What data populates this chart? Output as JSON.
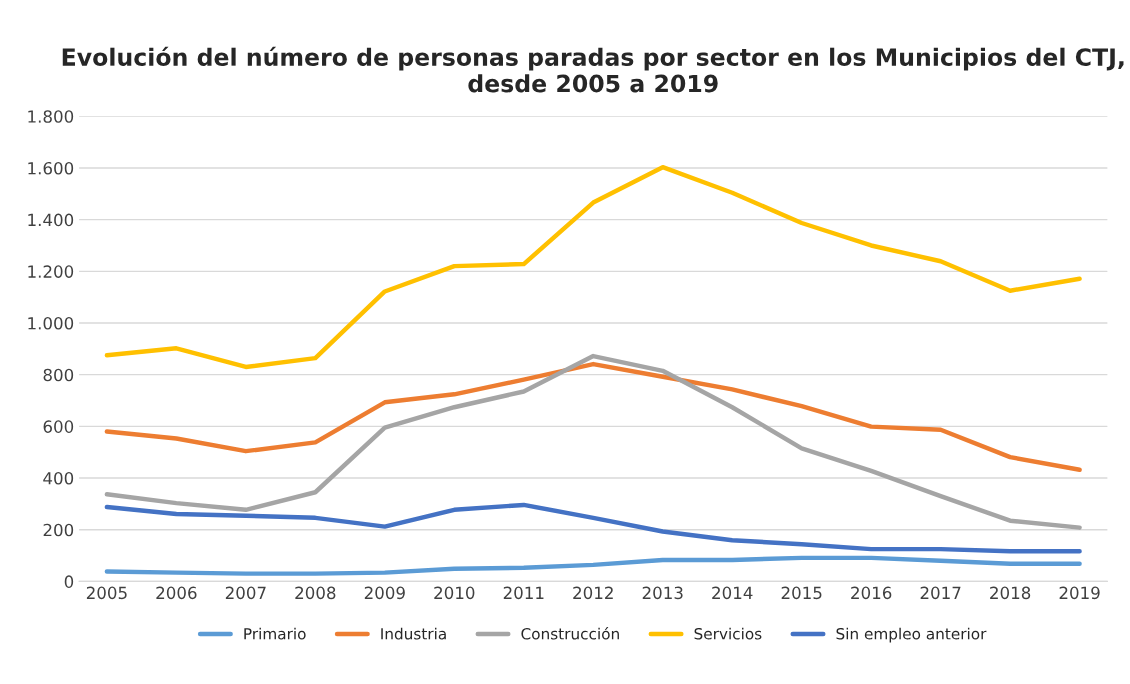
{
  "chart_data": {
    "type": "line",
    "title": "Evolución del número de personas paradas por sector en los Municipios del CTJ, desde 2005 a 2019",
    "categories": [
      "2005",
      "2006",
      "2007",
      "2008",
      "2009",
      "2010",
      "2011",
      "2012",
      "2013",
      "2014",
      "2015",
      "2016",
      "2017",
      "2018",
      "2019"
    ],
    "series": [
      {
        "name": "Primario",
        "color": "#5b9bd5",
        "values": [
          38,
          34,
          30,
          30,
          34,
          49,
          53,
          64,
          83,
          83,
          91,
          91,
          80,
          68,
          68
        ]
      },
      {
        "name": "Industria",
        "color": "#ed7d31",
        "values": [
          580,
          553,
          504,
          538,
          693,
          724,
          781,
          841,
          792,
          743,
          678,
          599,
          587,
          481,
          432
        ]
      },
      {
        "name": "Construcción",
        "color": "#a5a5a5",
        "values": [
          337,
          303,
          277,
          345,
          595,
          674,
          735,
          872,
          815,
          674,
          515,
          428,
          330,
          235,
          208
        ]
      },
      {
        "name": "Servicios",
        "color": "#ffc000",
        "values": [
          875,
          902,
          830,
          864,
          1122,
          1220,
          1228,
          1466,
          1603,
          1504,
          1387,
          1300,
          1239,
          1125,
          1171
        ]
      },
      {
        "name": "Sin empleo anterior",
        "color": "#4472c4",
        "values": [
          288,
          261,
          254,
          246,
          212,
          277,
          296,
          246,
          193,
          159,
          144,
          125,
          125,
          117,
          117
        ]
      }
    ],
    "ylim": [
      0,
      1800
    ],
    "yticks": [
      0,
      200,
      400,
      600,
      800,
      {
        "value": 1000,
        "label": "1.000"
      },
      {
        "value": 1200,
        "label": "1.200"
      },
      {
        "value": 1400,
        "label": "1.400"
      },
      {
        "value": 1600,
        "label": "1.600"
      },
      {
        "value": 1800,
        "label": "1.800"
      }
    ],
    "grid": "y",
    "legend": "bottom",
    "marker": "none",
    "line_style": "solid"
  }
}
